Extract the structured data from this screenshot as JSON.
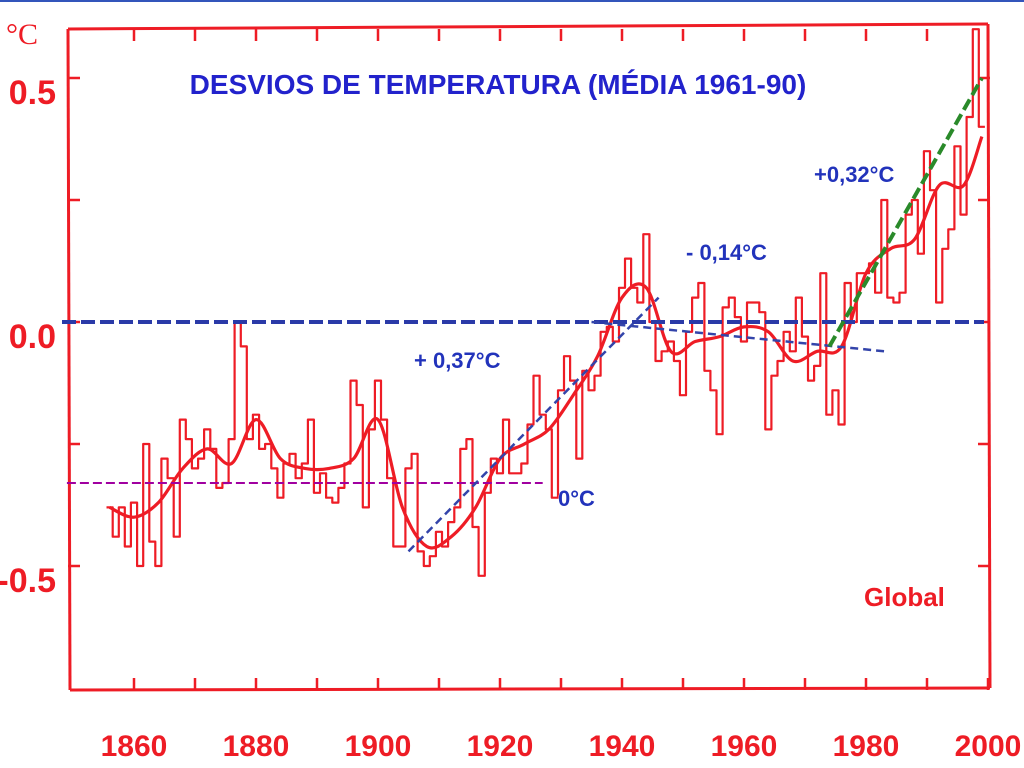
{
  "chart_data": {
    "type": "line",
    "title": "DESVIOS DE TEMPERATURA (MÉDIA 1961-90)",
    "ylabel": "°C",
    "xlabel": "",
    "label": "Global",
    "xlim": [
      1850,
      2003
    ],
    "ylim": [
      -0.76,
      0.6
    ],
    "xticks": [
      "1860",
      "1880",
      "1900",
      "1920",
      "1940",
      "1960",
      "1980",
      "2000"
    ],
    "yticks": [
      "0.5",
      "0.0",
      "-0.5"
    ],
    "colors": {
      "series": "#ee1c25",
      "baseline": "#2a3aa8",
      "trend": "#3344aa",
      "trend_recent": "#2a8a2a",
      "ref_dashed": "#a000a0",
      "title": "#2222cc"
    },
    "series": [
      {
        "name": "annual",
        "x": [
          1856,
          1857,
          1858,
          1859,
          1860,
          1861,
          1862,
          1863,
          1864,
          1865,
          1866,
          1867,
          1868,
          1869,
          1870,
          1871,
          1872,
          1873,
          1874,
          1875,
          1876,
          1877,
          1878,
          1879,
          1880,
          1881,
          1882,
          1883,
          1884,
          1885,
          1886,
          1887,
          1888,
          1889,
          1890,
          1891,
          1892,
          1893,
          1894,
          1895,
          1896,
          1897,
          1898,
          1899,
          1900,
          1901,
          1902,
          1903,
          1904,
          1905,
          1906,
          1907,
          1908,
          1909,
          1910,
          1911,
          1912,
          1913,
          1914,
          1915,
          1916,
          1917,
          1918,
          1919,
          1920,
          1921,
          1922,
          1923,
          1924,
          1925,
          1926,
          1927,
          1928,
          1929,
          1930,
          1931,
          1932,
          1933,
          1934,
          1935,
          1936,
          1937,
          1938,
          1939,
          1940,
          1941,
          1942,
          1943,
          1944,
          1945,
          1946,
          1947,
          1948,
          1949,
          1950,
          1951,
          1952,
          1953,
          1954,
          1955,
          1956,
          1957,
          1958,
          1959,
          1960,
          1961,
          1962,
          1963,
          1964,
          1965,
          1966,
          1967,
          1968,
          1969,
          1970,
          1971,
          1972,
          1973,
          1974,
          1975,
          1976,
          1977,
          1978,
          1979,
          1980,
          1981,
          1982,
          1983,
          1984,
          1985,
          1986,
          1987,
          1988,
          1989,
          1990,
          1991,
          1992,
          1993,
          1994,
          1995,
          1996,
          1997,
          1998,
          1999
        ],
        "values": [
          -0.38,
          -0.44,
          -0.38,
          -0.46,
          -0.37,
          -0.5,
          -0.25,
          -0.45,
          -0.5,
          -0.28,
          -0.32,
          -0.44,
          -0.2,
          -0.24,
          -0.3,
          -0.28,
          -0.22,
          -0.26,
          -0.34,
          -0.33,
          -0.24,
          0.0,
          -0.05,
          -0.24,
          -0.19,
          -0.26,
          -0.25,
          -0.3,
          -0.36,
          -0.29,
          -0.27,
          -0.32,
          -0.29,
          -0.2,
          -0.35,
          -0.31,
          -0.36,
          -0.37,
          -0.34,
          -0.29,
          -0.12,
          -0.17,
          -0.38,
          -0.22,
          -0.12,
          -0.2,
          -0.32,
          -0.46,
          -0.46,
          -0.3,
          -0.27,
          -0.47,
          -0.5,
          -0.48,
          -0.43,
          -0.46,
          -0.41,
          -0.38,
          -0.26,
          -0.24,
          -0.42,
          -0.52,
          -0.35,
          -0.28,
          -0.31,
          -0.2,
          -0.31,
          -0.31,
          -0.29,
          -0.21,
          -0.11,
          -0.19,
          -0.22,
          -0.36,
          -0.14,
          -0.07,
          -0.12,
          -0.28,
          -0.1,
          -0.14,
          -0.11,
          -0.02,
          -0.01,
          -0.04,
          0.07,
          0.13,
          0.07,
          0.04,
          0.18,
          0.0,
          -0.08,
          -0.06,
          -0.04,
          -0.08,
          -0.15,
          -0.02,
          0.05,
          0.08,
          -0.1,
          -0.14,
          -0.23,
          0.03,
          0.05,
          0.01,
          -0.04,
          0.04,
          0.04,
          0.02,
          -0.22,
          -0.11,
          -0.08,
          -0.02,
          -0.06,
          0.05,
          -0.03,
          -0.12,
          -0.09,
          0.1,
          -0.19,
          -0.14,
          -0.21,
          0.08,
          0.0,
          0.1,
          0.1,
          0.12,
          0.06,
          0.25,
          0.05,
          0.04,
          0.06,
          0.22,
          0.25,
          0.14,
          0.35,
          0.27,
          0.04,
          0.15,
          0.19,
          0.36,
          0.22,
          0.42,
          0.6,
          0.4
        ]
      },
      {
        "name": "smoothed",
        "x": [
          1856,
          1860,
          1864,
          1868,
          1872,
          1876,
          1880,
          1884,
          1888,
          1892,
          1896,
          1900,
          1904,
          1908,
          1912,
          1916,
          1920,
          1924,
          1928,
          1932,
          1936,
          1940,
          1944,
          1948,
          1952,
          1956,
          1960,
          1964,
          1968,
          1972,
          1976,
          1980,
          1984,
          1988,
          1992,
          1996,
          1999
        ],
        "values": [
          -0.38,
          -0.4,
          -0.37,
          -0.3,
          -0.26,
          -0.29,
          -0.2,
          -0.28,
          -0.3,
          -0.3,
          -0.28,
          -0.2,
          -0.38,
          -0.46,
          -0.44,
          -0.38,
          -0.28,
          -0.25,
          -0.22,
          -0.15,
          -0.07,
          0.05,
          0.07,
          -0.06,
          -0.04,
          -0.03,
          -0.01,
          -0.02,
          -0.08,
          -0.06,
          -0.05,
          0.1,
          0.15,
          0.17,
          0.28,
          0.28,
          0.38
        ]
      }
    ],
    "baseline": {
      "y": 0.0
    },
    "reference_line": {
      "y": -0.33,
      "x": [
        1849,
        1927
      ],
      "label": "0°C"
    },
    "trends": [
      {
        "label": "+ 0,37°C",
        "from": [
          1905,
          -0.47
        ],
        "to": [
          1946,
          0.05
        ]
      },
      {
        "label": "- 0,14°C",
        "from": [
          1935,
          0.0
        ],
        "to": [
          1983,
          -0.06
        ]
      },
      {
        "label": "+0,32°C",
        "from": [
          1974,
          -0.05
        ],
        "to": [
          1999,
          0.5
        ]
      }
    ],
    "annotations": [
      "+0,32°C",
      "- 0,14°C",
      "+ 0,37°C",
      "0°C"
    ],
    "grid": false,
    "legend": "none"
  }
}
